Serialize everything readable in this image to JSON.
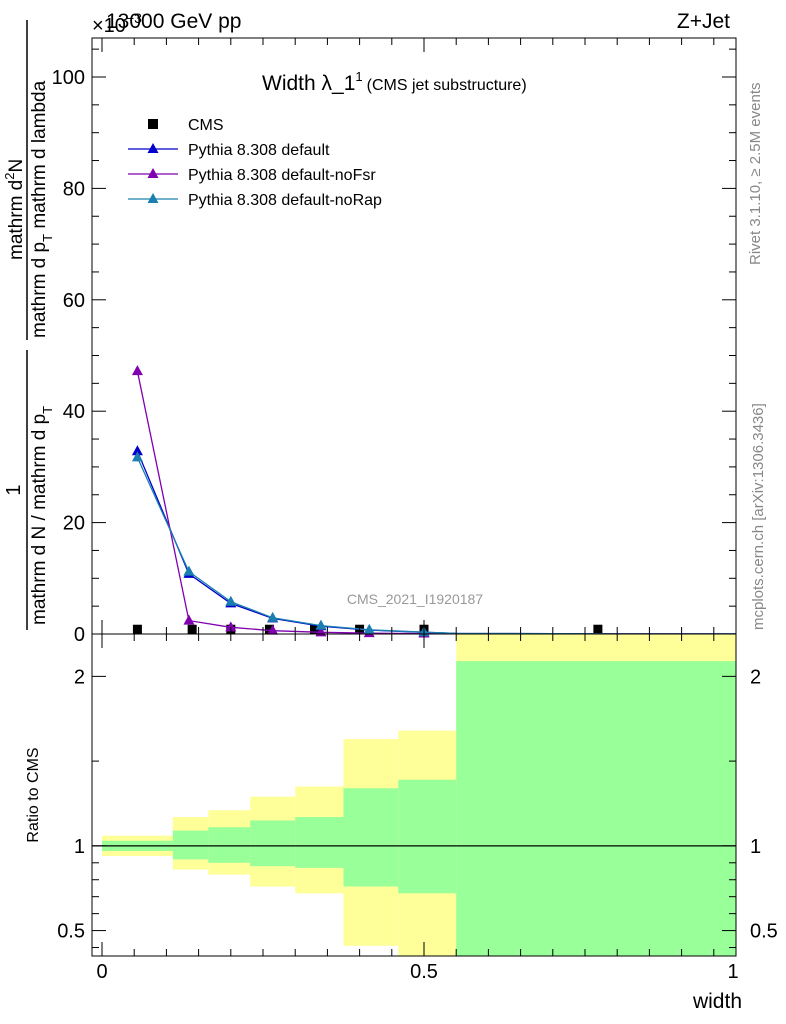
{
  "header": {
    "energy_label": "13000 GeV pp",
    "process_label": "Z+Jet",
    "exponent_label": "×10",
    "exponent_power": "−3"
  },
  "side_labels": {
    "rivet": "Rivet 3.1.10, ≥ 2.5M events",
    "mcplots": "mcplots.cern.ch [arXiv:1306.3436]"
  },
  "watermark": "CMS_2021_I1920187",
  "chart_data": [
    {
      "type": "line",
      "panel": "main",
      "title": "Width λ_1",
      "title_superscript": "1",
      "subtitle": "(CMS jet substructure)",
      "ylabel_fraction_left": "1",
      "ylabel_fraction_left_den": "mathrm d N / mathrm d p",
      "ylabel_fraction_left_den_sub": "T",
      "ylabel_fraction_right_num": "mathrm d",
      "ylabel_fraction_right_num_sup": "2",
      "ylabel_fraction_right_num_tail": "N",
      "ylabel_fraction_right_den": "mathrm d p",
      "ylabel_fraction_right_den_sub": "T",
      "ylabel_fraction_right_den_tail": " mathrm d lambda",
      "xlim": [
        0,
        1
      ],
      "ylim": [
        0,
        107
      ],
      "ytick_values": [
        0,
        20,
        40,
        60,
        80,
        100
      ],
      "ytick_labels": [
        "0",
        "20",
        "40",
        "60",
        "80",
        "100"
      ],
      "legend_position": "top-left",
      "series": [
        {
          "name": "CMS",
          "marker": "square",
          "color": "#000000",
          "x": [
            0.055,
            0.14,
            0.2,
            0.26,
            0.33,
            0.4,
            0.5,
            0.77
          ],
          "y": [
            0.05,
            0.05,
            0.05,
            0.05,
            0.05,
            0.05,
            0.05,
            0.05
          ]
        },
        {
          "name": "Pythia 8.308 default",
          "marker": "triangle",
          "color": "#0000cc",
          "x": [
            0.055,
            0.135,
            0.2,
            0.265,
            0.34,
            0.415,
            0.5,
            0.55,
            0.7,
            0.8,
            1.0
          ],
          "y": [
            32.8,
            10.8,
            5.5,
            2.8,
            1.4,
            0.7,
            0.3,
            0.1,
            0.05,
            0.02,
            0.01
          ]
        },
        {
          "name": "Pythia 8.308 default-noFsr",
          "marker": "triangle",
          "color": "#8000b0",
          "x": [
            0.055,
            0.135,
            0.2,
            0.265,
            0.34,
            0.415,
            0.5,
            0.55,
            0.7,
            0.8,
            1.0
          ],
          "y": [
            47.2,
            2.4,
            1.2,
            0.6,
            0.3,
            0.15,
            0.08,
            0.04,
            0.02,
            0.01,
            0.005
          ]
        },
        {
          "name": "Pythia 8.308 default-noRap",
          "marker": "triangle",
          "color": "#1a7fb0",
          "x": [
            0.055,
            0.135,
            0.2,
            0.265,
            0.34,
            0.415,
            0.5,
            0.55,
            0.7,
            0.8,
            1.0
          ],
          "y": [
            31.7,
            11.2,
            5.8,
            2.9,
            1.5,
            0.75,
            0.32,
            0.11,
            0.05,
            0.02,
            0.01
          ]
        }
      ]
    },
    {
      "type": "area",
      "panel": "ratio",
      "ylabel": "Ratio to CMS",
      "xlabel": "width",
      "xlim": [
        0,
        1
      ],
      "ylim": [
        0.35,
        2.25
      ],
      "reference_line": 1,
      "ytick_values": [
        0.5,
        1,
        2
      ],
      "ytick_labels": [
        "0.5",
        "1",
        "2"
      ],
      "xtick_values": [
        0,
        0.5,
        1
      ],
      "xtick_labels": [
        "0",
        "0.5",
        "1"
      ],
      "bins": [
        {
          "x0": 0.0,
          "x1": 0.11,
          "inner_lo": 0.97,
          "inner_hi": 1.03,
          "outer_lo": 0.94,
          "outer_hi": 1.06
        },
        {
          "x0": 0.11,
          "x1": 0.165,
          "inner_lo": 0.92,
          "inner_hi": 1.09,
          "outer_lo": 0.86,
          "outer_hi": 1.17
        },
        {
          "x0": 0.165,
          "x1": 0.23,
          "inner_lo": 0.9,
          "inner_hi": 1.11,
          "outer_lo": 0.83,
          "outer_hi": 1.21
        },
        {
          "x0": 0.23,
          "x1": 0.3,
          "inner_lo": 0.88,
          "inner_hi": 1.15,
          "outer_lo": 0.76,
          "outer_hi": 1.29
        },
        {
          "x0": 0.3,
          "x1": 0.375,
          "inner_lo": 0.87,
          "inner_hi": 1.17,
          "outer_lo": 0.72,
          "outer_hi": 1.35
        },
        {
          "x0": 0.375,
          "x1": 0.46,
          "inner_lo": 0.76,
          "inner_hi": 1.34,
          "outer_lo": 0.41,
          "outer_hi": 1.63
        },
        {
          "x0": 0.46,
          "x1": 0.55,
          "inner_lo": 0.72,
          "inner_hi": 1.39,
          "outer_lo": 0.35,
          "outer_hi": 1.68
        },
        {
          "x0": 0.55,
          "x1": 1.0,
          "inner_lo": 0.35,
          "inner_hi": 2.09,
          "outer_lo": 0.35,
          "outer_hi": 2.25
        }
      ],
      "inner_color": "#99ff99",
      "outer_color": "#ffff99"
    }
  ]
}
